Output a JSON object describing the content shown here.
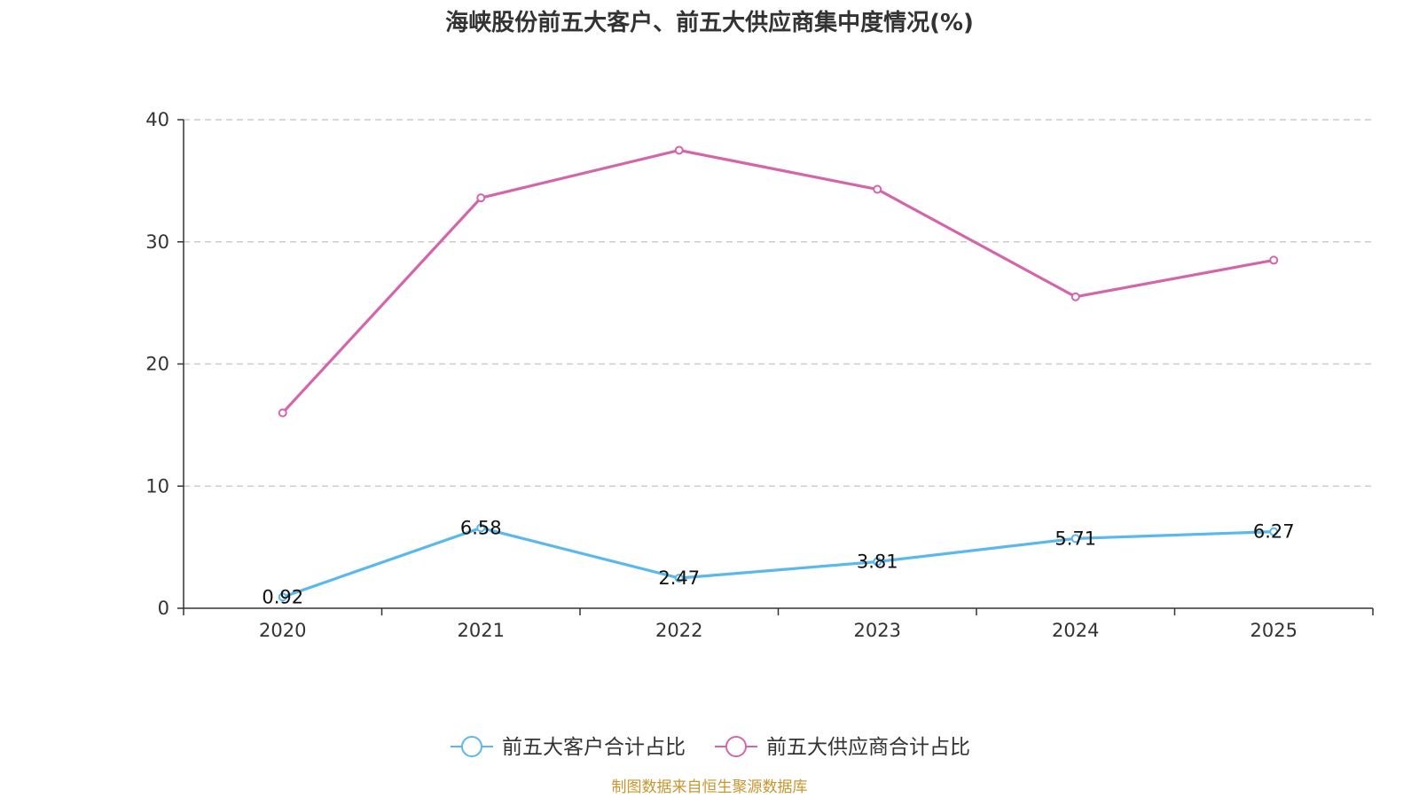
{
  "chart_data": {
    "type": "line",
    "title": "海峡股份前五大客户、前五大供应商集中度情况(%)",
    "categories": [
      "2020",
      "2021",
      "2022",
      "2023",
      "2024",
      "2025"
    ],
    "ylim": [
      0,
      40
    ],
    "yticks": [
      0,
      10,
      20,
      30,
      40
    ],
    "grid": true,
    "legend_position": "bottom",
    "series": [
      {
        "name": "前五大客户合计占比",
        "color": "#5ab8ec",
        "values": [
          0.92,
          6.58,
          2.47,
          3.81,
          5.71,
          6.27
        ],
        "labels": [
          "0.92",
          "6.58",
          "2.47",
          "3.81",
          "5.71",
          "6.27"
        ]
      },
      {
        "name": "前五大供应商合计占比",
        "color": "#d366aa",
        "values": [
          16.0,
          33.6,
          37.5,
          34.3,
          25.5,
          28.5
        ]
      }
    ],
    "source": "制图数据来自恒生聚源数据库",
    "source_color": "#c8962e",
    "axis_color": "#333333",
    "grid_color": "#cccccc"
  }
}
